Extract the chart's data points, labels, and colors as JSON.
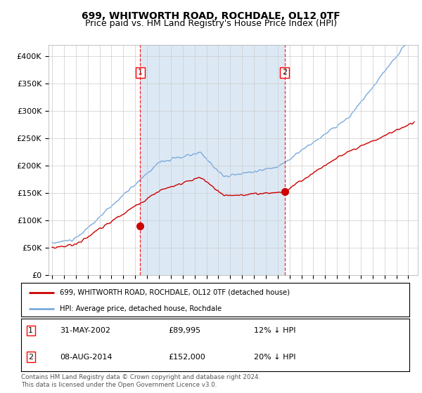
{
  "title": "699, WHITWORTH ROAD, ROCHDALE, OL12 0TF",
  "subtitle": "Price paid vs. HM Land Registry's House Price Index (HPI)",
  "title_fontsize": 10,
  "subtitle_fontsize": 9,
  "background_color": "#ffffff",
  "plot_bg_color": "#ffffff",
  "shade_color": "#dce9f5",
  "red_line_color": "#cc0000",
  "blue_line_color": "#7aaadd",
  "ylim": [
    0,
    420000
  ],
  "yticks": [
    0,
    50000,
    100000,
    150000,
    200000,
    250000,
    300000,
    350000,
    400000
  ],
  "ytick_labels": [
    "£0",
    "£50K",
    "£100K",
    "£150K",
    "£200K",
    "£250K",
    "£300K",
    "£350K",
    "£400K"
  ],
  "purchase1_date": 2002.42,
  "purchase1_price": 89995,
  "purchase2_date": 2014.59,
  "purchase2_price": 152000,
  "legend_red": "699, WHITWORTH ROAD, ROCHDALE, OL12 0TF (detached house)",
  "legend_blue": "HPI: Average price, detached house, Rochdale",
  "footer": "Contains HM Land Registry data © Crown copyright and database right 2024.\nThis data is licensed under the Open Government Licence v3.0.",
  "table": [
    [
      "1",
      "31-MAY-2002",
      "£89,995",
      "12% ↓ HPI"
    ],
    [
      "2",
      "08-AUG-2014",
      "£152,000",
      "20% ↓ HPI"
    ]
  ]
}
